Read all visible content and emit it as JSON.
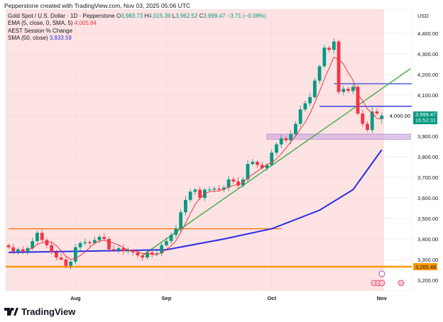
{
  "header": {
    "credit": "Pepperstone created with TradingView.com, Nov 03, 2025 05:06 UTC",
    "symbol": "Gold Spot / U.S. Dollar · 1D · Pepperstone",
    "ohlc": {
      "o_label": "O",
      "o": "3,983.73",
      "h_label": "H",
      "h": "4,015.39",
      "l_label": "L",
      "l": "3,962.52",
      "c_label": "C",
      "c": "3,999.47",
      "change": "−3.71 (−0.09%)"
    },
    "indicators": [
      {
        "label": "EMA (5, close, 0, SMA, 5)",
        "value": "4,005.84"
      },
      {
        "label": "AEST Session % Change",
        "value": ""
      },
      {
        "label": "SMA (50, close)",
        "value": "3,833.59"
      }
    ]
  },
  "footer": {
    "brand": "TradingView"
  },
  "chart_data": {
    "type": "candlestick",
    "currency": "USD",
    "ylim": [
      3160,
      4460
    ],
    "y_ticks": [
      "4,400.00",
      "4,300.00",
      "4,200.00",
      "4,100.00",
      "4,000.00",
      "3,900.00",
      "3,800.00",
      "3,700.00",
      "3,600.00",
      "3,500.00",
      "3,400.00",
      "3,300.00",
      "3,200.00"
    ],
    "y_tick_values": [
      4400,
      4300,
      4200,
      4100,
      4000,
      3900,
      3800,
      3700,
      3600,
      3500,
      3400,
      3300,
      3200
    ],
    "x_ticks": [
      {
        "label": "Aug",
        "bar": 14
      },
      {
        "label": "Sep",
        "bar": 33
      },
      {
        "label": "Oct",
        "bar": 55
      },
      {
        "label": "Nov",
        "bar": 78
      }
    ],
    "closes": [
      3360,
      3340,
      3350,
      3340,
      3355,
      3390,
      3430,
      3395,
      3370,
      3335,
      3310,
      3300,
      3270,
      3290,
      3360,
      3380,
      3385,
      3380,
      3395,
      3410,
      3400,
      3350,
      3345,
      3355,
      3340,
      3345,
      3335,
      3320,
      3310,
      3335,
      3325,
      3330,
      3370,
      3390,
      3420,
      3450,
      3530,
      3590,
      3630,
      3640,
      3600,
      3640,
      3640,
      3645,
      3640,
      3650,
      3690,
      3680,
      3660,
      3690,
      3765,
      3775,
      3760,
      3745,
      3760,
      3820,
      3860,
      3890,
      3880,
      3910,
      3960,
      4030,
      4060,
      4090,
      4170,
      4240,
      4330,
      4320,
      4360,
      4115,
      4130,
      4120,
      4140,
      4010,
      3960,
      3930,
      4020,
      4010,
      3999.47
    ],
    "last_candle": {
      "o": 3983.73,
      "h": 4015.39,
      "l": 3962.52,
      "c": 3999.47
    },
    "last_price_label": "3,999.47",
    "countdown": "16:52:31",
    "ema5_value": 4005.84,
    "sma50_knots": [
      [
        0,
        3335
      ],
      [
        14,
        3340
      ],
      [
        33,
        3348
      ],
      [
        45,
        3400
      ],
      [
        55,
        3450
      ],
      [
        65,
        3540
      ],
      [
        72,
        3640
      ],
      [
        78,
        3833.59
      ]
    ],
    "levels": [
      {
        "name": "support-orange",
        "value": 3265.48,
        "label": "3,265.48",
        "color": "#ff9800",
        "full": true
      },
      {
        "name": "resistance-orange",
        "value": 3450,
        "color": "#ff6d00",
        "from_bar": 0,
        "to_bar": 57
      },
      {
        "name": "blue-upper",
        "value": 4155,
        "color": "#3f51d8",
        "from_bar": 68,
        "to_bar": 85
      },
      {
        "name": "blue-lower",
        "value": 4045,
        "color": "#2a2ee6",
        "from_bar": 65,
        "to_bar": 85
      }
    ],
    "zone": {
      "low": 3885,
      "high": 3910,
      "from_bar": 54,
      "to_bar": 85,
      "color": "#c9a6e0"
    },
    "trendline": {
      "from": [
        28,
        3320
      ],
      "to": [
        84,
        4228
      ],
      "color": "#4caf50"
    },
    "colors": {
      "up": "#089981",
      "down": "#f23645",
      "ema": "#f23645",
      "sma": "#2a2ee6",
      "session_bg": "#fde3e3"
    }
  }
}
